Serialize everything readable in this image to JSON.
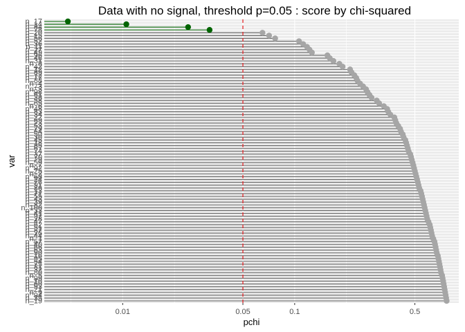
{
  "chart_data": {
    "type": "lollipop",
    "title": "Data with no signal, threshold p=0.05 : score by chi-squared",
    "xlabel": "pchi",
    "ylabel": "var",
    "x_scale": "log10",
    "x_ticks": [
      0.01,
      0.05,
      0.1,
      0.5
    ],
    "x_tick_labels": [
      "0.01",
      "0.05",
      "0.1",
      "0.5"
    ],
    "xlim": [
      0.0035,
      0.9
    ],
    "threshold": 0.05,
    "colors": {
      "significant": "#006400",
      "not_significant": "#a6a6a6",
      "stem": "#666666",
      "threshold": "#e41a1c",
      "panel": "#ebebeb",
      "grid": "#ffffff"
    },
    "categories": [
      "n_17",
      "n_14",
      "n_84",
      "n_78",
      "n_20",
      "n_15",
      "n_56",
      "n_52",
      "n_36",
      "n_11",
      "n_27",
      "n_49",
      "n_96",
      "n_46",
      "n_31",
      "n_8",
      "n_42",
      "n_12",
      "n_89",
      "n_72",
      "n_77",
      "n_88",
      "n_4",
      "n_73",
      "n_3",
      "n_98",
      "n_61",
      "n_38",
      "n_58",
      "n_65",
      "n_6",
      "n_48",
      "n_83",
      "n_34",
      "n_22",
      "n_69",
      "n_23",
      "n_53",
      "n_79",
      "n_64",
      "n_50",
      "n_30",
      "n_45",
      "n_18",
      "n_85",
      "n_67",
      "n_74",
      "n_37",
      "n_70",
      "n_29",
      "n_59",
      "n_7",
      "n_92",
      "n_25",
      "n_2",
      "n_68",
      "n_24",
      "n_76",
      "n_91",
      "n_86",
      "n_13",
      "n_71",
      "n_55",
      "n_43",
      "n_39",
      "n_82",
      "n_100",
      "n_33",
      "n_41",
      "n_97",
      "n_28",
      "n_47",
      "n_62",
      "n_51",
      "n_87",
      "n_26",
      "n_44",
      "n_1",
      "n_57",
      "n_40",
      "n_66",
      "n_63",
      "n_90",
      "n_16",
      "n_95",
      "n_54",
      "n_75",
      "n_81",
      "n_32",
      "n_80",
      "n_5",
      "n_99",
      "n_10",
      "n_60",
      "n_93",
      "n_21",
      "n_9",
      "n_94",
      "n_35",
      "n_19"
    ],
    "values": [
      0.0048,
      0.0105,
      0.024,
      0.032,
      0.065,
      0.071,
      0.077,
      0.106,
      0.112,
      0.118,
      0.122,
      0.126,
      0.155,
      0.16,
      0.168,
      0.182,
      0.19,
      0.21,
      0.214,
      0.222,
      0.228,
      0.232,
      0.24,
      0.25,
      0.26,
      0.265,
      0.272,
      0.28,
      0.3,
      0.31,
      0.33,
      0.345,
      0.35,
      0.36,
      0.38,
      0.385,
      0.39,
      0.4,
      0.41,
      0.415,
      0.425,
      0.43,
      0.44,
      0.445,
      0.45,
      0.455,
      0.46,
      0.47,
      0.475,
      0.48,
      0.485,
      0.49,
      0.495,
      0.5,
      0.505,
      0.51,
      0.515,
      0.52,
      0.525,
      0.53,
      0.54,
      0.545,
      0.55,
      0.555,
      0.56,
      0.565,
      0.57,
      0.575,
      0.58,
      0.585,
      0.59,
      0.6,
      0.61,
      0.615,
      0.62,
      0.625,
      0.63,
      0.64,
      0.65,
      0.655,
      0.66,
      0.665,
      0.67,
      0.68,
      0.685,
      0.69,
      0.695,
      0.7,
      0.705,
      0.71,
      0.72,
      0.725,
      0.73,
      0.735,
      0.74,
      0.745,
      0.75,
      0.755,
      0.76,
      0.765
    ]
  }
}
